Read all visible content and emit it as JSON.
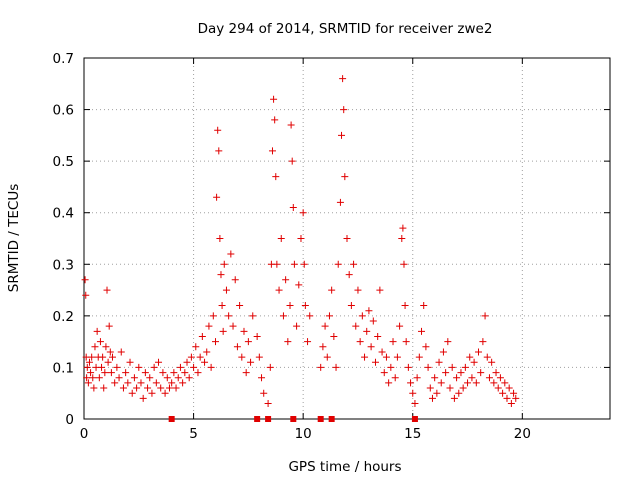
{
  "chart_data": {
    "type": "scatter",
    "title": "Day 294 of 2014, SRMTID for receiver zwe2",
    "xlabel": "GPS time / hours",
    "ylabel": "SRMTID / TECUs",
    "xlim": [
      0,
      24
    ],
    "ylim": [
      0,
      0.7
    ],
    "xticks": [
      "0",
      "5",
      "10",
      "15",
      "20"
    ],
    "yticks": [
      "0",
      "0.1",
      "0.2",
      "0.3",
      "0.4",
      "0.5",
      "0.6",
      "0.7"
    ],
    "grid": true,
    "marker": "plus",
    "color": "#e00000",
    "series": [
      {
        "name": "SRMTID",
        "points": [
          [
            0.05,
            0.27
          ],
          [
            0.08,
            0.24
          ],
          [
            0.1,
            0.12
          ],
          [
            0.12,
            0.08
          ],
          [
            0.15,
            0.1
          ],
          [
            0.2,
            0.07
          ],
          [
            0.25,
            0.11
          ],
          [
            0.3,
            0.09
          ],
          [
            0.35,
            0.12
          ],
          [
            0.4,
            0.08
          ],
          [
            0.45,
            0.06
          ],
          [
            0.5,
            0.14
          ],
          [
            0.55,
            0.1
          ],
          [
            0.6,
            0.17
          ],
          [
            0.65,
            0.12
          ],
          [
            0.7,
            0.08
          ],
          [
            0.75,
            0.15
          ],
          [
            0.8,
            0.1
          ],
          [
            0.85,
            0.12
          ],
          [
            0.9,
            0.06
          ],
          [
            0.95,
            0.09
          ],
          [
            1.0,
            0.14
          ],
          [
            1.05,
            0.25
          ],
          [
            1.1,
            0.11
          ],
          [
            1.15,
            0.18
          ],
          [
            1.2,
            0.13
          ],
          [
            1.25,
            0.09
          ],
          [
            1.3,
            0.12
          ],
          [
            1.4,
            0.07
          ],
          [
            1.5,
            0.1
          ],
          [
            1.6,
            0.08
          ],
          [
            1.7,
            0.13
          ],
          [
            1.8,
            0.06
          ],
          [
            1.9,
            0.09
          ],
          [
            2.0,
            0.07
          ],
          [
            2.1,
            0.11
          ],
          [
            2.2,
            0.05
          ],
          [
            2.3,
            0.08
          ],
          [
            2.4,
            0.06
          ],
          [
            2.5,
            0.1
          ],
          [
            2.6,
            0.07
          ],
          [
            2.7,
            0.04
          ],
          [
            2.8,
            0.09
          ],
          [
            2.9,
            0.06
          ],
          [
            3.0,
            0.08
          ],
          [
            3.1,
            0.05
          ],
          [
            3.2,
            0.1
          ],
          [
            3.3,
            0.07
          ],
          [
            3.4,
            0.11
          ],
          [
            3.5,
            0.06
          ],
          [
            3.6,
            0.09
          ],
          [
            3.7,
            0.05
          ],
          [
            3.8,
            0.08
          ],
          [
            3.9,
            0.06
          ],
          [
            4.0,
            0.07
          ],
          [
            4.1,
            0.09
          ],
          [
            4.2,
            0.06
          ],
          [
            4.3,
            0.08
          ],
          [
            4.4,
            0.1
          ],
          [
            4.5,
            0.07
          ],
          [
            4.6,
            0.09
          ],
          [
            4.7,
            0.11
          ],
          [
            4.8,
            0.08
          ],
          [
            4.9,
            0.12
          ],
          [
            5.0,
            0.1
          ],
          [
            5.1,
            0.14
          ],
          [
            5.2,
            0.09
          ],
          [
            5.3,
            0.12
          ],
          [
            5.4,
            0.16
          ],
          [
            5.5,
            0.11
          ],
          [
            5.6,
            0.13
          ],
          [
            5.7,
            0.18
          ],
          [
            5.8,
            0.1
          ],
          [
            5.9,
            0.2
          ],
          [
            6.0,
            0.15
          ],
          [
            6.05,
            0.43
          ],
          [
            6.1,
            0.56
          ],
          [
            6.15,
            0.52
          ],
          [
            6.2,
            0.35
          ],
          [
            6.25,
            0.28
          ],
          [
            6.3,
            0.22
          ],
          [
            6.35,
            0.17
          ],
          [
            6.4,
            0.3
          ],
          [
            6.5,
            0.25
          ],
          [
            6.6,
            0.2
          ],
          [
            6.7,
            0.32
          ],
          [
            6.8,
            0.18
          ],
          [
            6.9,
            0.27
          ],
          [
            7.0,
            0.14
          ],
          [
            7.1,
            0.22
          ],
          [
            7.2,
            0.12
          ],
          [
            7.3,
            0.17
          ],
          [
            7.4,
            0.09
          ],
          [
            7.5,
            0.15
          ],
          [
            7.6,
            0.11
          ],
          [
            7.7,
            0.2
          ],
          [
            7.9,
            0.16
          ],
          [
            8.0,
            0.12
          ],
          [
            8.1,
            0.08
          ],
          [
            8.2,
            0.05
          ],
          [
            8.4,
            0.03
          ],
          [
            8.5,
            0.1
          ],
          [
            8.55,
            0.3
          ],
          [
            8.6,
            0.52
          ],
          [
            8.65,
            0.62
          ],
          [
            8.7,
            0.58
          ],
          [
            8.75,
            0.47
          ],
          [
            8.8,
            0.3
          ],
          [
            8.9,
            0.25
          ],
          [
            9.0,
            0.35
          ],
          [
            9.1,
            0.2
          ],
          [
            9.2,
            0.27
          ],
          [
            9.3,
            0.15
          ],
          [
            9.4,
            0.22
          ],
          [
            9.45,
            0.57
          ],
          [
            9.5,
            0.5
          ],
          [
            9.55,
            0.41
          ],
          [
            9.6,
            0.3
          ],
          [
            9.7,
            0.18
          ],
          [
            9.8,
            0.26
          ],
          [
            9.9,
            0.35
          ],
          [
            10.0,
            0.4
          ],
          [
            10.05,
            0.3
          ],
          [
            10.1,
            0.22
          ],
          [
            10.2,
            0.15
          ],
          [
            10.3,
            0.2
          ],
          [
            10.8,
            0.1
          ],
          [
            10.9,
            0.14
          ],
          [
            11.0,
            0.18
          ],
          [
            11.1,
            0.12
          ],
          [
            11.2,
            0.2
          ],
          [
            11.3,
            0.25
          ],
          [
            11.4,
            0.16
          ],
          [
            11.5,
            0.1
          ],
          [
            11.6,
            0.3
          ],
          [
            11.7,
            0.42
          ],
          [
            11.75,
            0.55
          ],
          [
            11.8,
            0.66
          ],
          [
            11.85,
            0.6
          ],
          [
            11.9,
            0.47
          ],
          [
            12.0,
            0.35
          ],
          [
            12.1,
            0.28
          ],
          [
            12.2,
            0.22
          ],
          [
            12.3,
            0.3
          ],
          [
            12.4,
            0.18
          ],
          [
            12.5,
            0.25
          ],
          [
            12.6,
            0.15
          ],
          [
            12.7,
            0.2
          ],
          [
            12.8,
            0.12
          ],
          [
            12.9,
            0.17
          ],
          [
            13.0,
            0.21
          ],
          [
            13.1,
            0.14
          ],
          [
            13.2,
            0.19
          ],
          [
            13.3,
            0.11
          ],
          [
            13.4,
            0.16
          ],
          [
            13.5,
            0.25
          ],
          [
            13.6,
            0.13
          ],
          [
            13.7,
            0.09
          ],
          [
            13.8,
            0.12
          ],
          [
            13.9,
            0.07
          ],
          [
            14.0,
            0.1
          ],
          [
            14.1,
            0.15
          ],
          [
            14.2,
            0.08
          ],
          [
            14.3,
            0.12
          ],
          [
            14.4,
            0.18
          ],
          [
            14.5,
            0.35
          ],
          [
            14.55,
            0.37
          ],
          [
            14.6,
            0.3
          ],
          [
            14.65,
            0.22
          ],
          [
            14.7,
            0.15
          ],
          [
            14.8,
            0.1
          ],
          [
            14.9,
            0.07
          ],
          [
            15.0,
            0.05
          ],
          [
            15.1,
            0.03
          ],
          [
            15.2,
            0.08
          ],
          [
            15.3,
            0.12
          ],
          [
            15.4,
            0.17
          ],
          [
            15.5,
            0.22
          ],
          [
            15.6,
            0.14
          ],
          [
            15.7,
            0.1
          ],
          [
            15.8,
            0.06
          ],
          [
            15.9,
            0.04
          ],
          [
            16.0,
            0.08
          ],
          [
            16.1,
            0.05
          ],
          [
            16.2,
            0.11
          ],
          [
            16.3,
            0.07
          ],
          [
            16.4,
            0.13
          ],
          [
            16.5,
            0.09
          ],
          [
            16.6,
            0.15
          ],
          [
            16.7,
            0.06
          ],
          [
            16.8,
            0.1
          ],
          [
            16.9,
            0.04
          ],
          [
            17.0,
            0.08
          ],
          [
            17.1,
            0.05
          ],
          [
            17.2,
            0.09
          ],
          [
            17.3,
            0.06
          ],
          [
            17.4,
            0.1
          ],
          [
            17.5,
            0.07
          ],
          [
            17.6,
            0.12
          ],
          [
            17.7,
            0.08
          ],
          [
            17.8,
            0.11
          ],
          [
            17.9,
            0.07
          ],
          [
            18.0,
            0.13
          ],
          [
            18.1,
            0.09
          ],
          [
            18.2,
            0.15
          ],
          [
            18.3,
            0.2
          ],
          [
            18.4,
            0.12
          ],
          [
            18.5,
            0.08
          ],
          [
            18.6,
            0.11
          ],
          [
            18.7,
            0.07
          ],
          [
            18.8,
            0.09
          ],
          [
            18.9,
            0.06
          ],
          [
            19.0,
            0.08
          ],
          [
            19.1,
            0.05
          ],
          [
            19.2,
            0.07
          ],
          [
            19.3,
            0.04
          ],
          [
            19.4,
            0.06
          ],
          [
            19.5,
            0.03
          ],
          [
            19.6,
            0.05
          ],
          [
            19.7,
            0.04
          ]
        ]
      }
    ],
    "baseline_markers": [
      4.0,
      7.9,
      8.4,
      9.55,
      10.8,
      11.3,
      15.1
    ],
    "baseline_markers_value": 0
  }
}
